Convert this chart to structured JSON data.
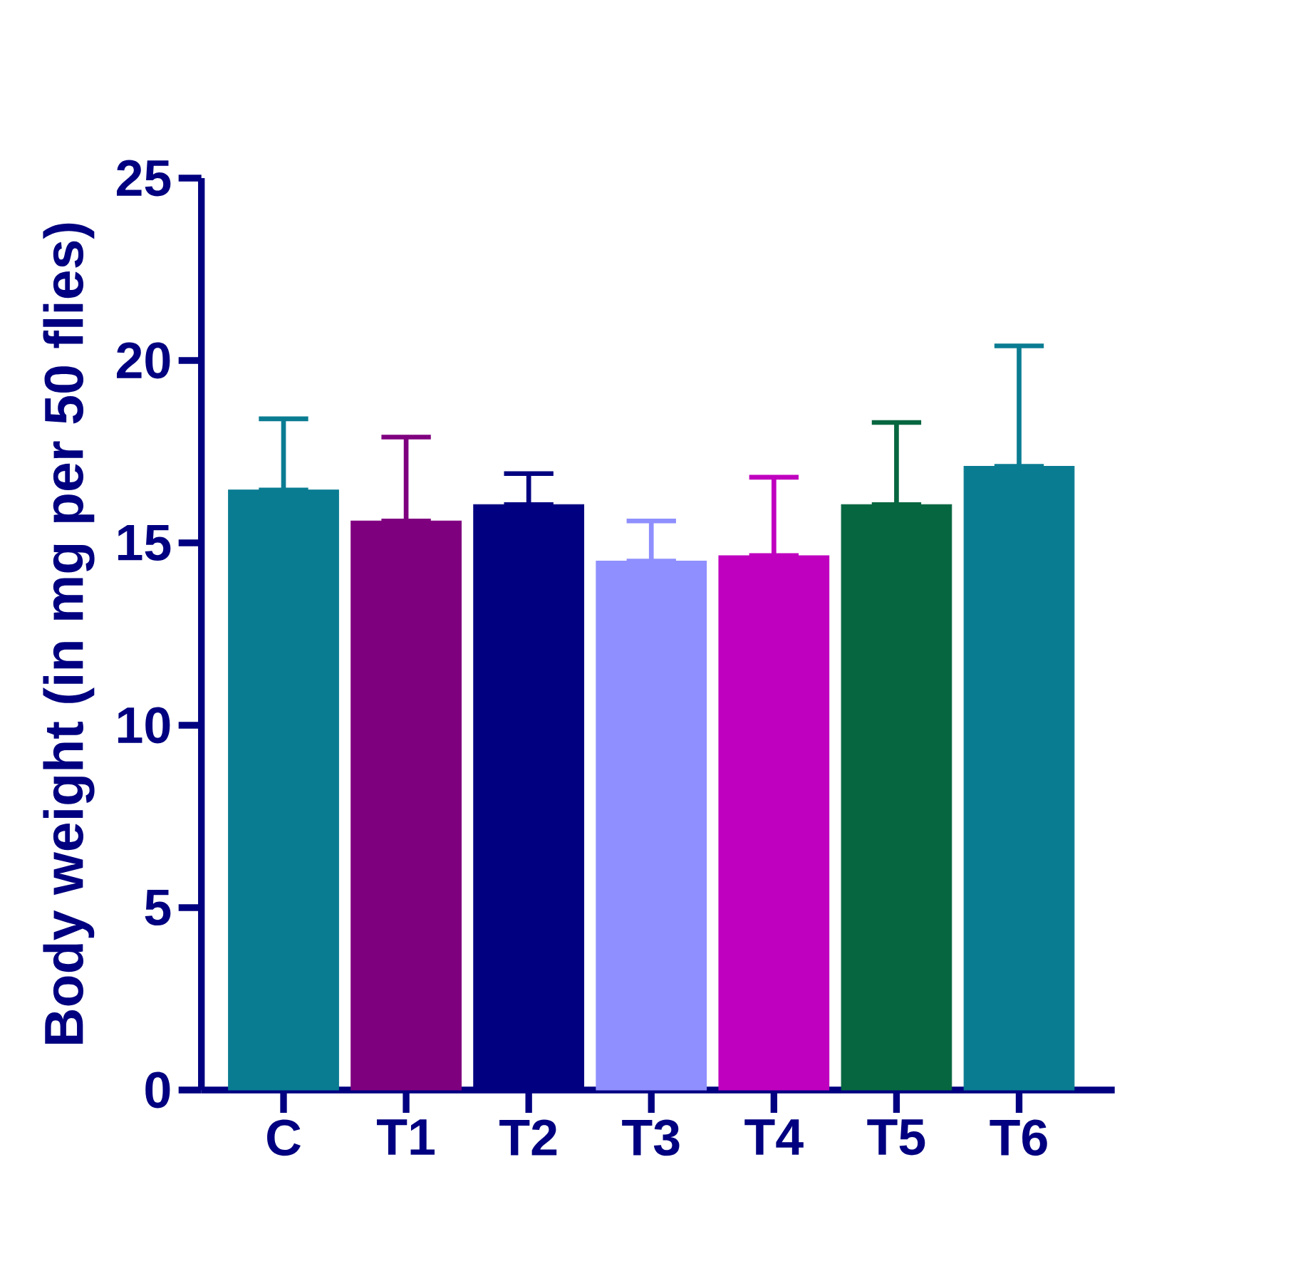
{
  "chart_data": {
    "type": "bar",
    "ylabel": "Body weight (in mg per 50 flies)",
    "categories": [
      "C",
      "T1",
      "T2",
      "T3",
      "T4",
      "T5",
      "T6"
    ],
    "values": [
      16.45,
      15.6,
      16.05,
      14.5,
      14.65,
      16.05,
      17.1
    ],
    "errors": [
      [
        16.45,
        18.4
      ],
      [
        15.6,
        17.9
      ],
      [
        16.05,
        16.9
      ],
      [
        14.5,
        15.6
      ],
      [
        14.65,
        16.8
      ],
      [
        16.05,
        18.3
      ],
      [
        17.1,
        20.4
      ]
    ],
    "colors": [
      "#0a7c92",
      "#7f007f",
      "#000080",
      "#8f8fff",
      "#bf00bf",
      "#066640",
      "#0a7c92"
    ],
    "ylim": [
      0,
      25
    ],
    "yticks": [
      0,
      5,
      10,
      15,
      20,
      25
    ]
  }
}
